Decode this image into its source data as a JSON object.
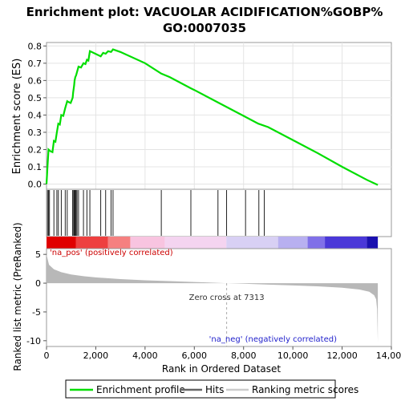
{
  "chart_data": {
    "type": "line",
    "title": "Enrichment plot: VACUOLAR ACIDIFICATION%GOBP%",
    "subtitle": "GO:0007035",
    "ylabel_top": "Enrichment score (ES)",
    "ylabel_bottom": "Ranked list metric (PreRanked)",
    "xlabel": "Rank in Ordered Dataset",
    "es_yticks": [
      "0.0",
      "0.1",
      "0.2",
      "0.3",
      "0.4",
      "0.5",
      "0.6",
      "0.7",
      "0.8"
    ],
    "metric_yticks": [
      "5",
      "0",
      "-5",
      "-10"
    ],
    "xticks": [
      "0",
      "2,000",
      "4,000",
      "6,000",
      "8,000",
      "10,000",
      "12,000",
      "14,000"
    ],
    "xlim": [
      0,
      14000
    ],
    "es_ylim": [
      -0.03,
      0.82
    ],
    "metric_ylim": [
      -11,
      6
    ],
    "es_curve": {
      "x": [
        0,
        40,
        80,
        120,
        160,
        240,
        300,
        360,
        420,
        480,
        540,
        600,
        680,
        760,
        840,
        900,
        980,
        1060,
        1080,
        1120,
        1140,
        1170,
        1200,
        1240,
        1300,
        1400,
        1500,
        1580,
        1640,
        1700,
        1760,
        2200,
        2300,
        2400,
        2500,
        2620,
        2700,
        3000,
        4000,
        4660,
        5000,
        5860,
        6000,
        7000,
        8000,
        8600,
        9000,
        10000,
        11000,
        12000,
        13000,
        13450
      ],
      "y": [
        0.0,
        0.1,
        0.2,
        0.195,
        0.19,
        0.185,
        0.25,
        0.245,
        0.3,
        0.35,
        0.345,
        0.4,
        0.395,
        0.44,
        0.48,
        0.475,
        0.47,
        0.5,
        0.53,
        0.57,
        0.6,
        0.62,
        0.63,
        0.65,
        0.68,
        0.675,
        0.7,
        0.695,
        0.72,
        0.715,
        0.77,
        0.74,
        0.76,
        0.755,
        0.77,
        0.765,
        0.78,
        0.765,
        0.7,
        0.64,
        0.62,
        0.555,
        0.545,
        0.47,
        0.395,
        0.35,
        0.33,
        0.255,
        0.18,
        0.1,
        0.025,
        -0.005
      ]
    },
    "hits": [
      40,
      80,
      120,
      300,
      420,
      480,
      600,
      760,
      840,
      1060,
      1080,
      1120,
      1140,
      1170,
      1200,
      1240,
      1300,
      1500,
      1640,
      1760,
      2200,
      2400,
      2620,
      2700,
      4660,
      5860,
      6960,
      7310,
      8080,
      8620,
      8840
    ],
    "metric_curve": {
      "x": [
        0,
        100,
        300,
        600,
        1000,
        1500,
        2000,
        3000,
        4000,
        5000,
        6000,
        7000,
        7313,
        8000,
        9000,
        10000,
        11000,
        12000,
        12700,
        13100,
        13300,
        13380,
        13420,
        13450
      ],
      "y": [
        5.0,
        3.2,
        2.4,
        1.9,
        1.5,
        1.2,
        1.0,
        0.7,
        0.5,
        0.35,
        0.2,
        0.05,
        0.0,
        -0.1,
        -0.25,
        -0.4,
        -0.55,
        -0.8,
        -1.1,
        -1.5,
        -2.1,
        -2.8,
        -4.5,
        -10.3
      ]
    },
    "zero_cross_label": "Zero cross at 7313",
    "zero_cross_x": 7313,
    "pos_label": "'na_pos' (positively correlated)",
    "neg_label": "'na_neg' (negatively correlated)",
    "gradient_colors": [
      "#e00000",
      "#ee4040",
      "#f58080",
      "#f8c4e0",
      "#f4d4f0",
      "#d8d0f4",
      "#b8b0f0",
      "#8070e8",
      "#4a38d8",
      "#1a10b0"
    ],
    "gradient_stops_rank": [
      0,
      1200,
      2500,
      3400,
      4800,
      7300,
      9400,
      10600,
      11300,
      13000,
      13450
    ],
    "legend": [
      {
        "label": "Enrichment profile",
        "color": "#00dd00"
      },
      {
        "label": "Hits",
        "color": "#666666"
      },
      {
        "label": "Ranking metric scores",
        "color": "#cccccc"
      }
    ]
  }
}
